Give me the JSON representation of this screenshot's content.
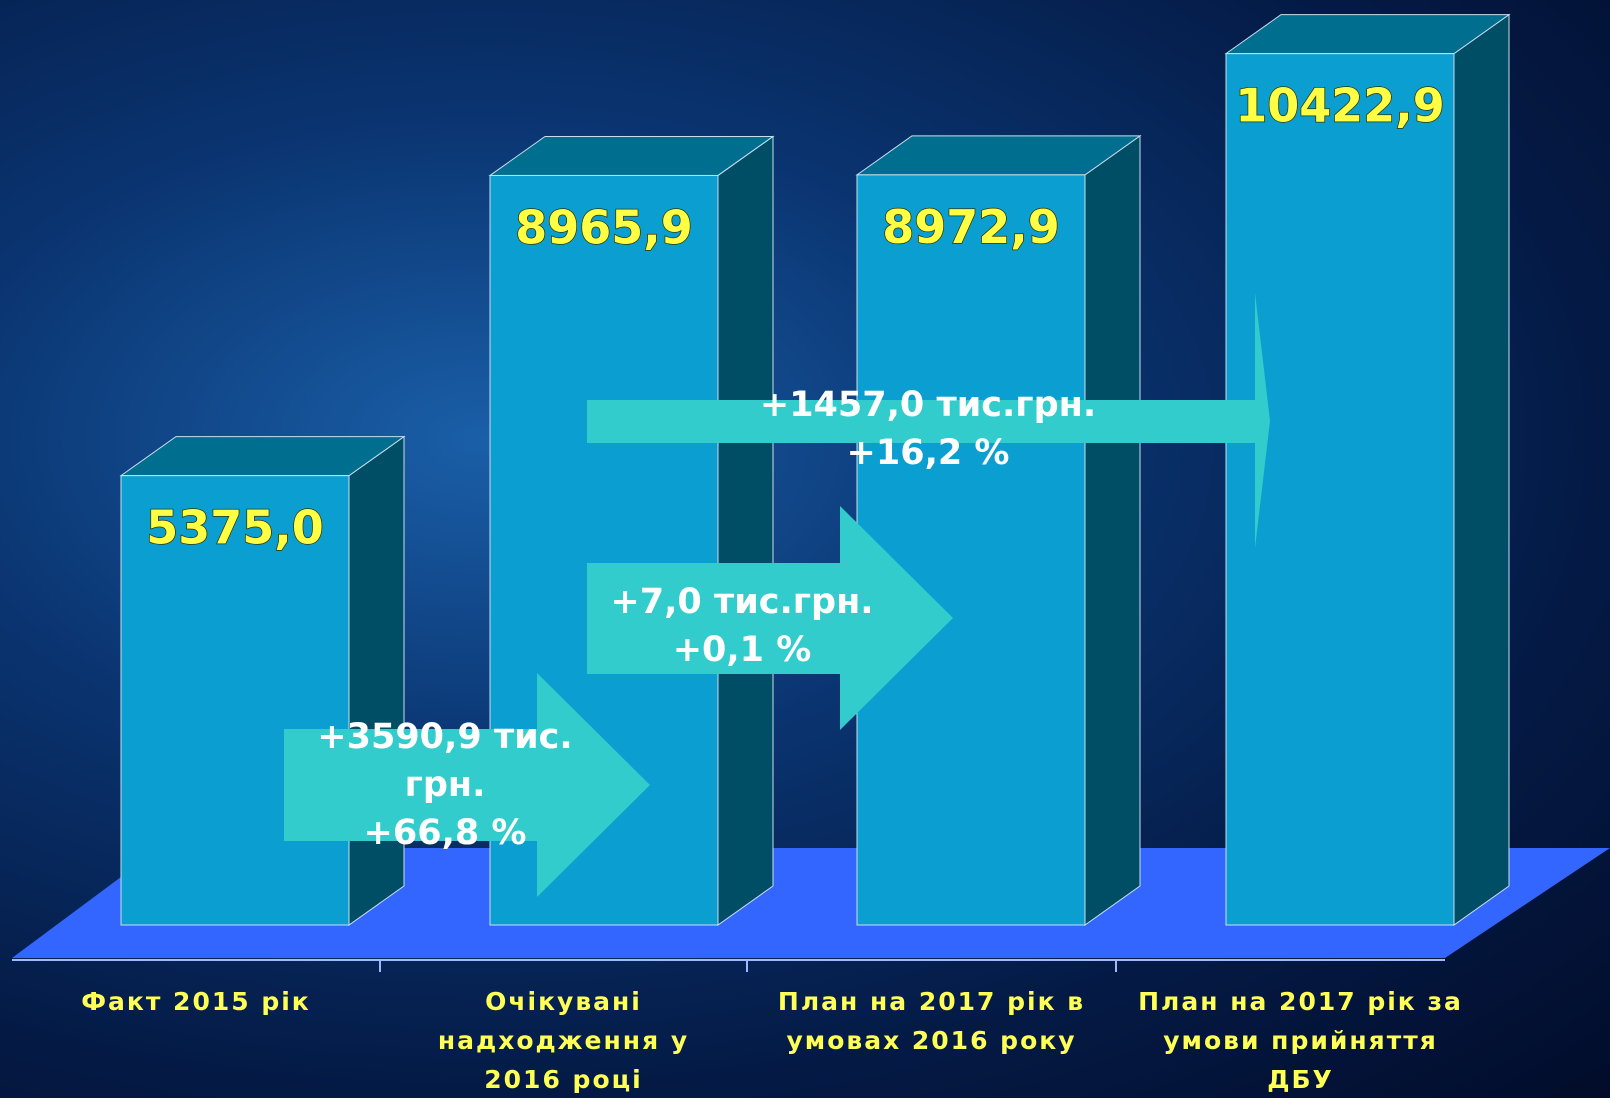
{
  "chart_data": {
    "type": "bar3d",
    "categories": [
      "Факт 2015 рік",
      "Очікувані надходження у 2016 році",
      "План на 2017 рік в умовах 2016 року",
      "План на 2017 рік за умови прийняття ДБУ"
    ],
    "values": [
      5375.0,
      8965.9,
      8972.9,
      10422.9
    ],
    "value_labels": [
      "5375,0",
      "8965,9",
      "8972,9",
      "10422,9"
    ],
    "color": "#0a9fd0",
    "annotations": [
      {
        "lines": [
          "+3590,9 тис.",
          "грн.",
          "+66,8 %"
        ]
      },
      {
        "lines": [
          "+7,0 тис.грн.",
          "+0,1 %"
        ]
      },
      {
        "lines": [
          "+1457,0 тис.грн.",
          "+16,2 %"
        ]
      }
    ]
  }
}
